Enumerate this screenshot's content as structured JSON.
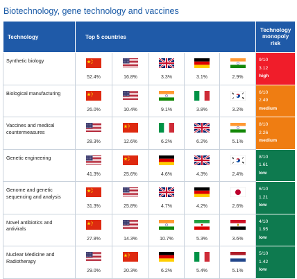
{
  "title": "Biotechnology, gene technology and vaccines",
  "headers": {
    "technology": "Technology",
    "top5": "Top 5 countries",
    "risk": "Technology monopoly risk"
  },
  "rows": [
    {
      "technology": "Synthetic biology",
      "countries": [
        {
          "flag": "china",
          "pct": "52.4%"
        },
        {
          "flag": "usa",
          "pct": "16.8%"
        },
        {
          "flag": "uk",
          "pct": "3.3%"
        },
        {
          "flag": "germany",
          "pct": "3.1%"
        },
        {
          "flag": "india",
          "pct": "2.9%"
        }
      ],
      "risk": {
        "score": "9/10",
        "value": "3.12",
        "level": "high",
        "color": "#f01d2a"
      }
    },
    {
      "technology": "Biological manufacturing",
      "countries": [
        {
          "flag": "china",
          "pct": "26.0%"
        },
        {
          "flag": "usa",
          "pct": "10.4%"
        },
        {
          "flag": "india",
          "pct": "9.1%"
        },
        {
          "flag": "italy",
          "pct": "3.8%"
        },
        {
          "flag": "korea",
          "pct": "3.2%"
        }
      ],
      "risk": {
        "score": "6/10",
        "value": "2.49",
        "level": "medium",
        "color": "#ef7d12"
      }
    },
    {
      "technology": "Vaccines and medical countermeasures",
      "countries": [
        {
          "flag": "usa",
          "pct": "28.3%"
        },
        {
          "flag": "china",
          "pct": "12.6%"
        },
        {
          "flag": "italy",
          "pct": "6.2%"
        },
        {
          "flag": "uk",
          "pct": "6.2%"
        },
        {
          "flag": "india",
          "pct": "5.1%"
        }
      ],
      "risk": {
        "score": "8/10",
        "value": "2.26",
        "level": "medium",
        "color": "#ef7d12"
      }
    },
    {
      "technology": "Genetic engineering",
      "countries": [
        {
          "flag": "usa",
          "pct": "41.3%"
        },
        {
          "flag": "china",
          "pct": "25.6%"
        },
        {
          "flag": "germany",
          "pct": "4.6%"
        },
        {
          "flag": "uk",
          "pct": "4.3%"
        },
        {
          "flag": "korea",
          "pct": "2.4%"
        }
      ],
      "risk": {
        "score": "8/10",
        "value": "1.61",
        "level": "low",
        "color": "#0e7a4f"
      }
    },
    {
      "technology": "Genome and genetic sequencing and analysis",
      "countries": [
        {
          "flag": "china",
          "pct": "31.3%"
        },
        {
          "flag": "usa",
          "pct": "25.8%"
        },
        {
          "flag": "uk",
          "pct": "4.7%"
        },
        {
          "flag": "germany",
          "pct": "4.2%"
        },
        {
          "flag": "japan",
          "pct": "2.6%"
        }
      ],
      "risk": {
        "score": "6/10",
        "value": "1.21",
        "level": "low",
        "color": "#0e7a4f"
      }
    },
    {
      "technology": "Novel antibiotics and antivirals",
      "countries": [
        {
          "flag": "china",
          "pct": "27.8%"
        },
        {
          "flag": "usa",
          "pct": "14.3%"
        },
        {
          "flag": "india",
          "pct": "10.7%"
        },
        {
          "flag": "iran",
          "pct": "5.3%"
        },
        {
          "flag": "egypt",
          "pct": "3.6%"
        }
      ],
      "risk": {
        "score": "4/10",
        "value": "1.95",
        "level": "low",
        "color": "#0e7a4f"
      }
    },
    {
      "technology": "Nuclear Medicine and Radiotherapy",
      "countries": [
        {
          "flag": "usa",
          "pct": "29.0%"
        },
        {
          "flag": "china",
          "pct": "20.3%"
        },
        {
          "flag": "germany",
          "pct": "6.2%"
        },
        {
          "flag": "italy",
          "pct": "5.4%"
        },
        {
          "flag": "netherlands",
          "pct": "5.1%"
        }
      ],
      "risk": {
        "score": "5/10",
        "value": "1.42",
        "level": "low",
        "color": "#0e7a4f"
      }
    }
  ]
}
